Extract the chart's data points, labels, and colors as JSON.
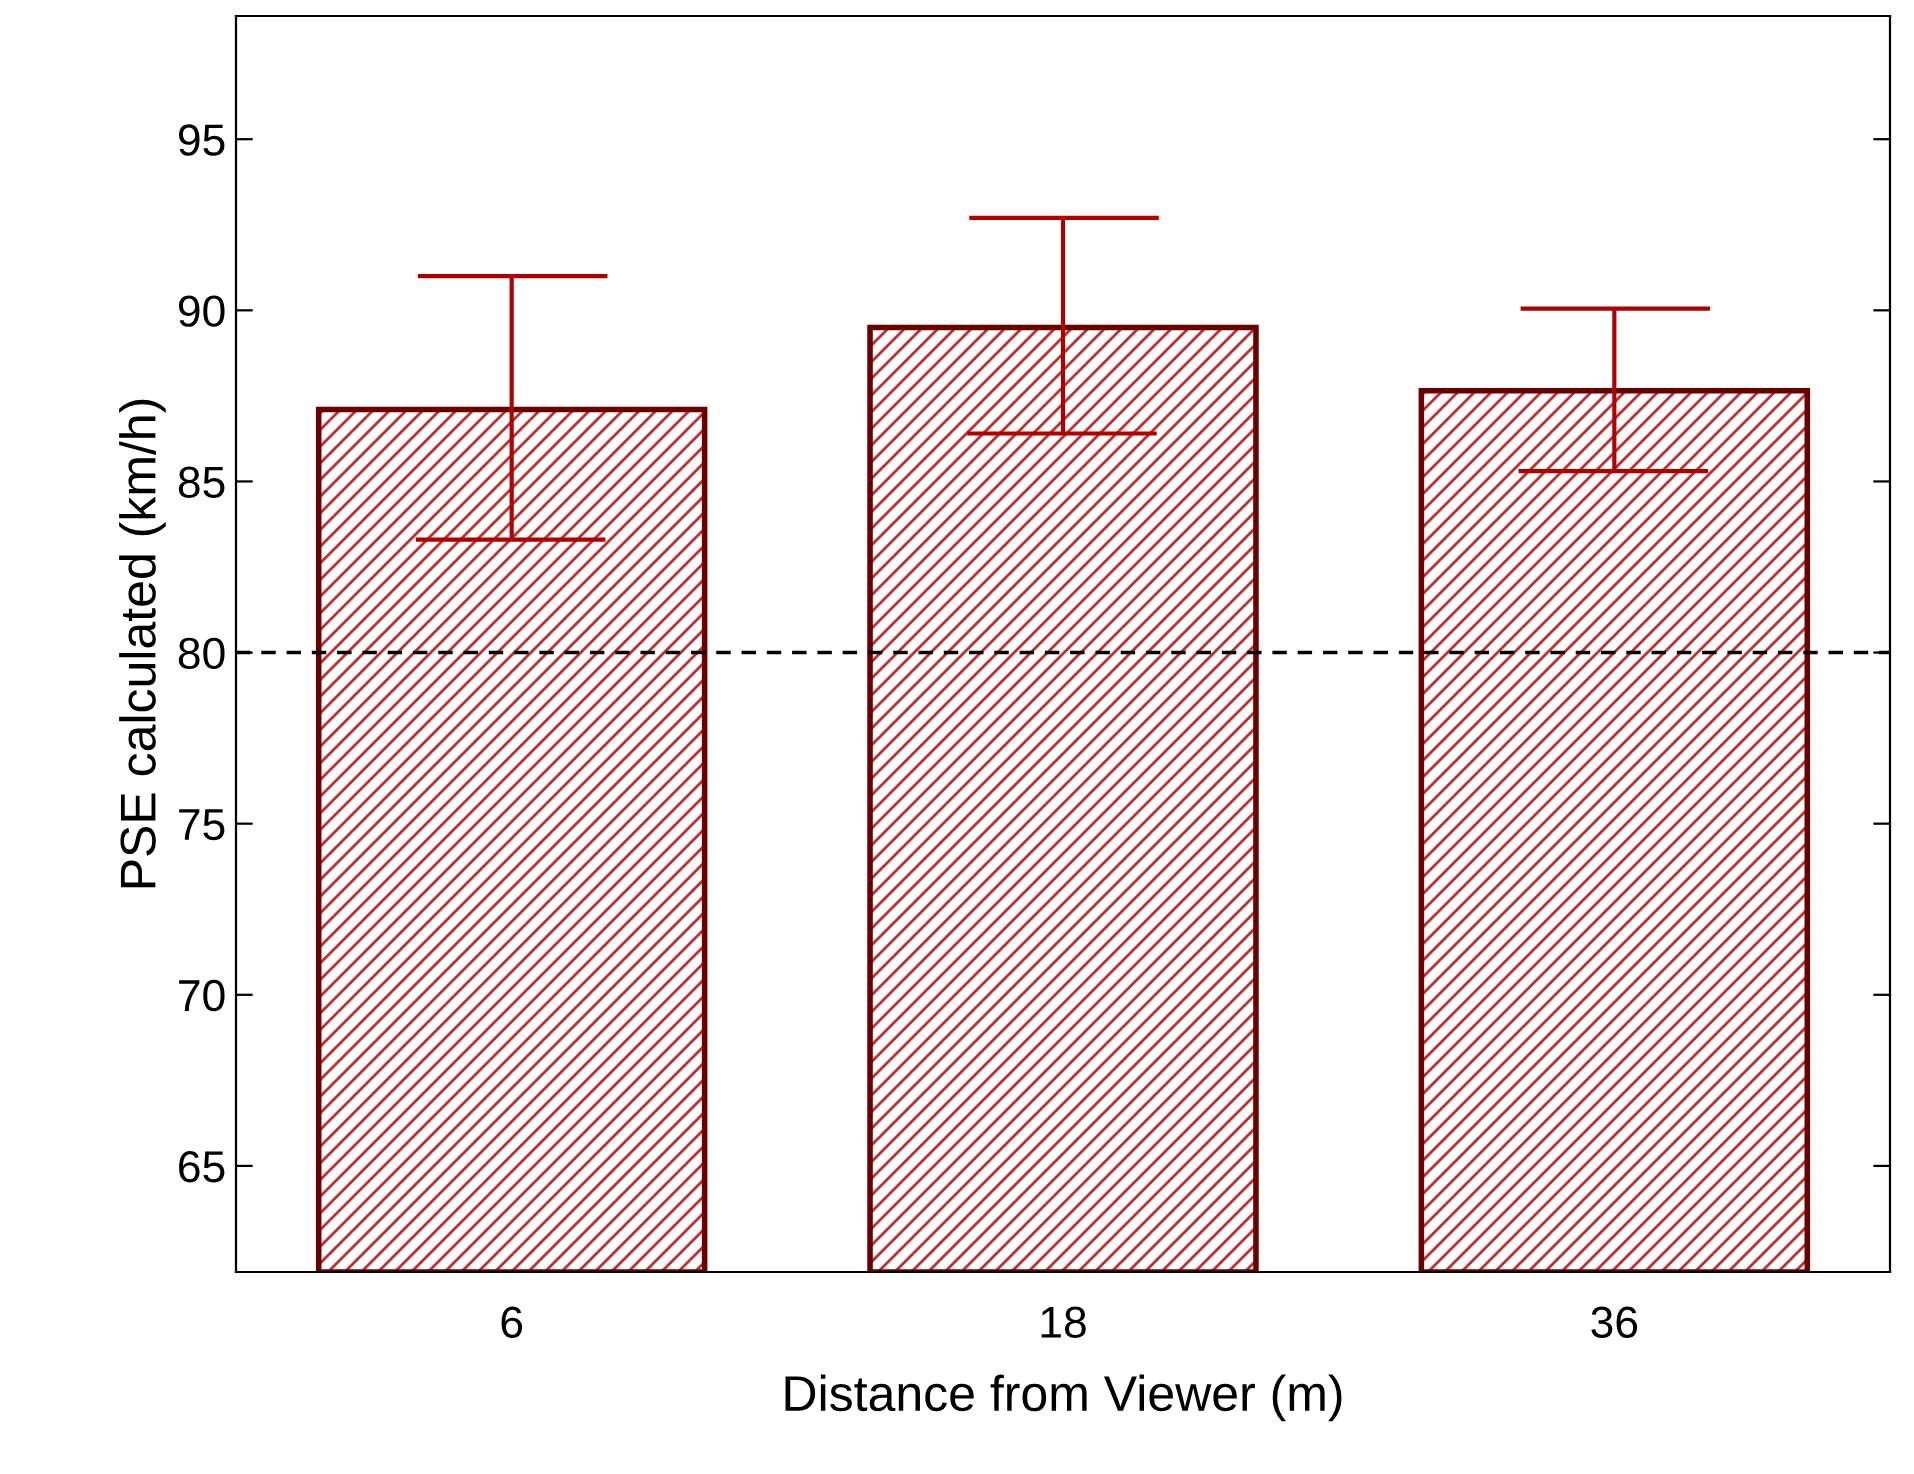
{
  "chart_data": {
    "type": "bar",
    "xlabel": "Distance from Viewer (m)",
    "ylabel": "PSE calculated (km/h)",
    "categories": [
      "6",
      "18",
      "36"
    ],
    "values": [
      87.1,
      89.5,
      87.65
    ],
    "errors": [
      [
        83.3,
        91.0
      ],
      [
        86.4,
        92.7
      ],
      [
        85.3,
        90.05
      ]
    ],
    "color": "#c03030",
    "ylim": [
      61.9,
      98.6
    ],
    "yticks": [
      65,
      70,
      75,
      80,
      85,
      90,
      95
    ],
    "ref_lines": [
      {
        "axis": "y",
        "value": 80,
        "color": "#000000",
        "line_style": "dashed"
      }
    ],
    "grid": false,
    "legend": false
  }
}
